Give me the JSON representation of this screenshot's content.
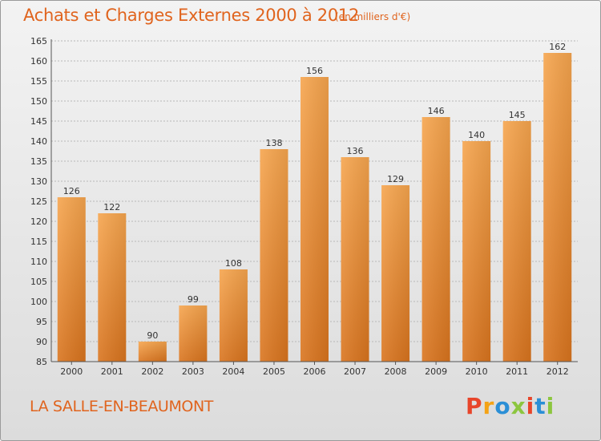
{
  "header": {
    "title": "Achats et Charges Externes 2000 à 2012",
    "subtitle": "(en milliers d'€)"
  },
  "footer": {
    "commune": "LA SALLE-EN-BEAUMONT",
    "logo_text": "Proxiti",
    "logo_colors": [
      "#e8452a",
      "#f4a316",
      "#2b8fd6",
      "#8cc63f",
      "#e8452a",
      "#2b8fd6",
      "#8cc63f"
    ]
  },
  "colors": {
    "bar_top": "#f6a54e",
    "bar_bottom": "#d9741e",
    "accent_text": "#e0641e",
    "grid": "#b8b8b8"
  },
  "chart_data": {
    "type": "bar",
    "title": "Achats et Charges Externes 2000 à 2012",
    "subtitle": "(en milliers d'€)",
    "categories": [
      "2000",
      "2001",
      "2002",
      "2003",
      "2004",
      "2005",
      "2006",
      "2007",
      "2008",
      "2009",
      "2010",
      "2011",
      "2012"
    ],
    "values": [
      126,
      122,
      90,
      99,
      108,
      138,
      156,
      136,
      129,
      146,
      140,
      145,
      162
    ],
    "ylim": [
      85,
      165
    ],
    "yticks": [
      85,
      90,
      95,
      100,
      105,
      110,
      115,
      120,
      125,
      130,
      135,
      140,
      145,
      150,
      155,
      160,
      165
    ],
    "grid": true,
    "data_labels": true
  }
}
